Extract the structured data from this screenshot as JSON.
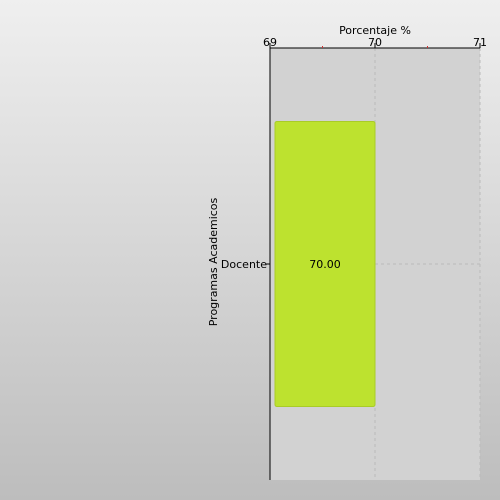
{
  "chart_data": {
    "type": "bar",
    "orientation": "horizontal",
    "title": "",
    "xlabel": "Porcentaje %",
    "ylabel": "Programas Academicos",
    "categories": [
      "Docente"
    ],
    "values": [
      70.0
    ],
    "value_labels": [
      "70.00"
    ],
    "xlim": [
      69,
      71
    ],
    "x_ticks": [
      69,
      70,
      71
    ],
    "x_tick_labels": [
      "69",
      "70",
      "71"
    ],
    "x_minor_ticks": [
      69.5,
      70.5
    ],
    "x_axis_position": "top",
    "grid": true,
    "legend": "none",
    "colors": {
      "bar": "#bde22f",
      "bar_stroke": "#a9cc27",
      "background_top": "#efefef",
      "background_bottom": "#bdbdbd",
      "plot_area": "#d2d2d2",
      "minor_tick": "#cc3333",
      "grid": "#bbbbbb"
    }
  }
}
